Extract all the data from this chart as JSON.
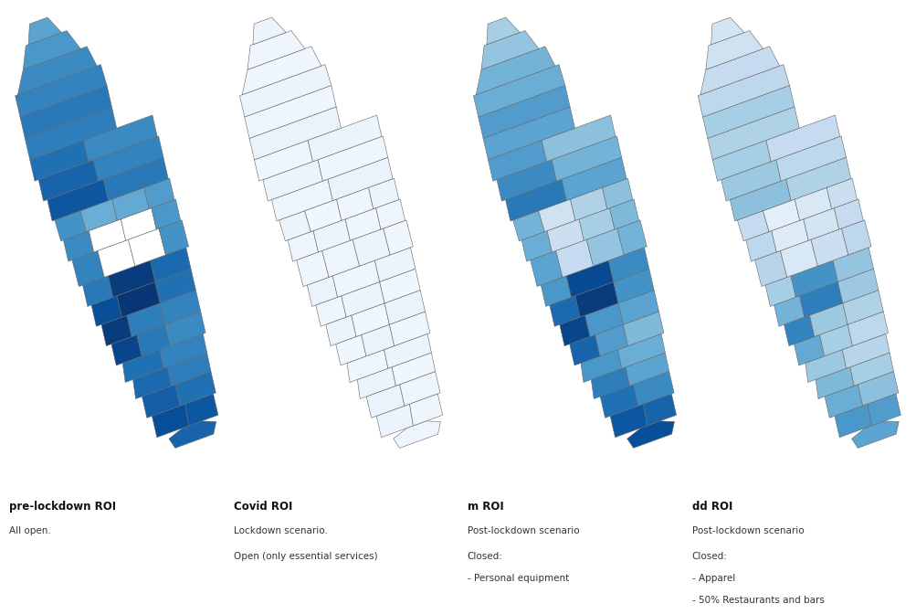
{
  "maps": [
    {
      "label": "pre-lockdown ROI",
      "subtitle": "All open.",
      "extra_lines": []
    },
    {
      "label": "Covid ROI",
      "subtitle": "Lockdown scenario.",
      "extra_lines": [
        "Open (only essential services)"
      ]
    },
    {
      "label": "m ROI",
      "subtitle": "Post-lockdown scenario",
      "extra_lines": [
        "Closed:",
        "- Personal equipment"
      ]
    },
    {
      "label": "dd ROI",
      "subtitle": "Post-lockdown scenario",
      "extra_lines": [
        "Closed:",
        "- Apparel",
        "- 50% Restaurants and bars"
      ]
    }
  ],
  "background_color": "#ffffff",
  "edge_color": "#666666",
  "edge_lw": 0.4,
  "label_fontsize": 8.5,
  "subtitle_fontsize": 7.5,
  "cmap": "Blues",
  "vmin": 0.0,
  "vmax": 1.0
}
